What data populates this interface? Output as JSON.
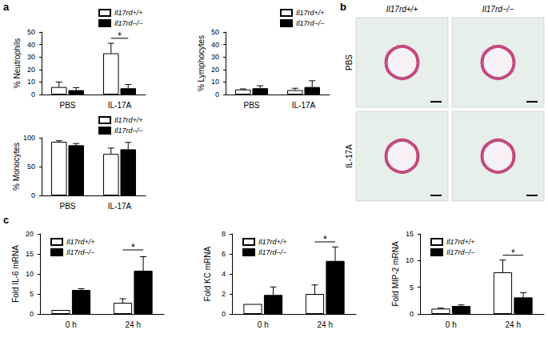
{
  "chart_data": [
    {
      "type": "bar",
      "panel": "a",
      "y_label": "% Neutrophils",
      "categories": [
        "PBS",
        "IL-17A"
      ],
      "series": [
        {
          "name": "Il17rd+/+",
          "color": "#ffffff",
          "values": [
            6,
            33
          ],
          "errors": [
            4,
            8
          ]
        },
        {
          "name": "Il17rd−/−",
          "color": "#000000",
          "values": [
            3.5,
            5
          ],
          "errors": [
            2,
            3
          ]
        }
      ],
      "ylim": [
        0,
        50
      ],
      "yticks": [
        0,
        10,
        20,
        30,
        40,
        50
      ],
      "grid": false,
      "legend": "top-right",
      "significance": [
        {
          "category": "IL-17A",
          "y": 45,
          "label": "*"
        }
      ]
    },
    {
      "type": "bar",
      "y_label": "% Lymphocytes",
      "categories": [
        "PBS",
        "IL-17A"
      ],
      "series": [
        {
          "name": "Il17rd+/+",
          "color": "#ffffff",
          "values": [
            4,
            3.5
          ],
          "errors": [
            0.5,
            1.5
          ]
        },
        {
          "name": "Il17rd−/−",
          "color": "#000000",
          "values": [
            5,
            6
          ],
          "errors": [
            2,
            5
          ]
        }
      ],
      "ylim": [
        0,
        50
      ],
      "yticks": [
        0,
        10,
        20,
        30,
        40,
        50
      ],
      "grid": false,
      "legend": "top-right",
      "significance": []
    },
    {
      "type": "bar",
      "y_label": "% Monocytes",
      "categories": [
        "PBS",
        "IL-17A"
      ],
      "series": [
        {
          "name": "Il17rd+/+",
          "color": "#ffffff",
          "values": [
            93,
            72
          ],
          "errors": [
            2,
            10
          ]
        },
        {
          "name": "Il17rd−/−",
          "color": "#000000",
          "values": [
            87,
            80
          ],
          "errors": [
            3,
            12
          ]
        }
      ],
      "ylim": [
        0,
        100
      ],
      "yticks": [
        0,
        50,
        100
      ],
      "grid": false,
      "legend": "top-right",
      "significance": []
    },
    {
      "type": "bar",
      "panel": "c",
      "y_label": "Fold IL-6 mRNA",
      "categories": [
        "0 h",
        "24 h"
      ],
      "series": [
        {
          "name": "Il17rd+/+",
          "color": "#ffffff",
          "values": [
            1,
            2.8
          ],
          "errors": [
            0,
            1
          ]
        },
        {
          "name": "Il17rd−/−",
          "color": "#000000",
          "values": [
            6,
            10.8
          ],
          "errors": [
            0.3,
            3.5
          ]
        }
      ],
      "ylim": [
        0,
        20
      ],
      "yticks": [
        0,
        5,
        10,
        15,
        20
      ],
      "grid": false,
      "legend": "top-left",
      "significance": [
        {
          "category": "24 h",
          "y": 16,
          "label": "*"
        }
      ]
    },
    {
      "type": "bar",
      "y_label": "Fold KC mRNA",
      "categories": [
        "0 h",
        "24 h"
      ],
      "series": [
        {
          "name": "Il17rd+/+",
          "color": "#ffffff",
          "values": [
            1,
            2
          ],
          "errors": [
            0,
            0.9
          ]
        },
        {
          "name": "Il17rd−/−",
          "color": "#000000",
          "values": [
            1.9,
            5.3
          ],
          "errors": [
            0.8,
            1.4
          ]
        }
      ],
      "ylim": [
        0,
        8
      ],
      "yticks": [
        0,
        2,
        4,
        6,
        8
      ],
      "grid": false,
      "legend": "top-left",
      "significance": [
        {
          "category": "24 h",
          "y": 7.2,
          "label": "*"
        }
      ]
    },
    {
      "type": "bar",
      "y_label": "Fold MIP-2 mRNA",
      "categories": [
        "0 h",
        "24 h"
      ],
      "series": [
        {
          "name": "Il17rd+/+",
          "color": "#ffffff",
          "values": [
            1,
            7.8
          ],
          "errors": [
            0.1,
            2.3
          ]
        },
        {
          "name": "Il17rd−/−",
          "color": "#000000",
          "values": [
            1.5,
            3.1
          ],
          "errors": [
            0.2,
            0.9
          ]
        }
      ],
      "ylim": [
        0,
        15
      ],
      "yticks": [
        0,
        5,
        10,
        15
      ],
      "grid": false,
      "legend": "top-left",
      "significance": [
        {
          "category": "24 h",
          "y": 11,
          "label": "*"
        }
      ]
    }
  ],
  "micrographs": {
    "panel": "b",
    "columns": [
      "Il17rd+/+",
      "Il17rd−/−"
    ],
    "rows": [
      "PBS",
      "IL-17A"
    ]
  }
}
